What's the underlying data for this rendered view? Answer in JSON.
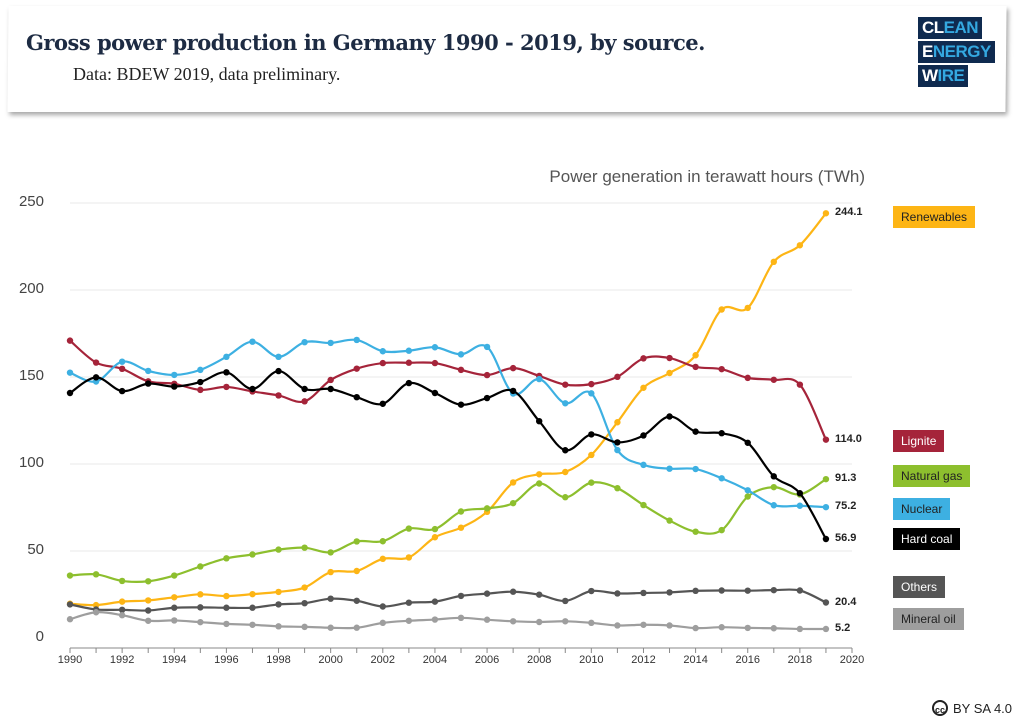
{
  "header": {
    "title": "Gross power production in Germany 1990 - 2019, by source.",
    "subtitle": "Data: BDEW 2019, data preliminary.",
    "logo": [
      "CLEAN",
      "ENERGY",
      "WIRE"
    ]
  },
  "license": "BY SA 4.0",
  "chart_data": {
    "type": "line",
    "title": "Gross power production in Germany 1990 - 2019, by source.",
    "ylabel": "Power generation in terawatt hours (TWh)",
    "xlim": [
      1990,
      2020
    ],
    "ylim": [
      0,
      250
    ],
    "yticks": [
      0,
      50,
      100,
      150,
      200,
      250
    ],
    "xticks": [
      1990,
      1992,
      1994,
      1996,
      1998,
      2000,
      2002,
      2004,
      2006,
      2008,
      2010,
      2012,
      2014,
      2016,
      2018,
      2020
    ],
    "grid": "horizontal",
    "legend": "right",
    "x": [
      1990,
      1991,
      1992,
      1993,
      1994,
      1995,
      1996,
      1997,
      1998,
      1999,
      2000,
      2001,
      2002,
      2003,
      2004,
      2005,
      2006,
      2007,
      2008,
      2009,
      2010,
      2011,
      2012,
      2013,
      2014,
      2015,
      2016,
      2017,
      2018,
      2019
    ],
    "series": [
      {
        "name": "Renewables",
        "color": "#FDB515",
        "text": "#222",
        "end_label": "244.1",
        "values": [
          19.7,
          18.9,
          20.9,
          21.6,
          23.4,
          25.1,
          24.1,
          25.2,
          26.5,
          29.0,
          37.9,
          38.5,
          45.5,
          46.3,
          57.9,
          63.4,
          72.5,
          89.4,
          94.1,
          95.4,
          105.2,
          124.0,
          143.8,
          152.3,
          162.5,
          188.8,
          189.7,
          216.2,
          225.7,
          244.1
        ]
      },
      {
        "name": "Lignite",
        "color": "#A5243A",
        "text": "#fff",
        "end_label": "114.0",
        "values": [
          170.9,
          158.3,
          154.7,
          147.5,
          146.1,
          142.6,
          144.3,
          141.7,
          139.4,
          136.0,
          148.3,
          154.8,
          158.0,
          158.2,
          158.0,
          154.1,
          151.1,
          155.1,
          150.6,
          145.6,
          145.9,
          150.1,
          160.7,
          160.9,
          155.8,
          154.5,
          149.5,
          148.4,
          145.6,
          114.0
        ]
      },
      {
        "name": "Natural gas",
        "color": "#8DBF2E",
        "text": "#222",
        "end_label": "91.3",
        "values": [
          35.9,
          36.6,
          32.8,
          32.6,
          35.9,
          41.1,
          45.8,
          48.0,
          50.8,
          51.9,
          49.2,
          55.5,
          55.6,
          62.9,
          62.6,
          72.7,
          74.5,
          77.5,
          88.8,
          80.9,
          89.3,
          86.1,
          76.4,
          67.5,
          61.1,
          62.0,
          81.3,
          86.7,
          82.5,
          91.3
        ]
      },
      {
        "name": "Nuclear",
        "color": "#3DB0E2",
        "text": "#222",
        "end_label": "75.2",
        "values": [
          152.5,
          147.4,
          158.8,
          153.5,
          151.2,
          154.1,
          161.6,
          170.3,
          161.6,
          170.0,
          169.6,
          171.3,
          164.8,
          165.1,
          167.1,
          163.0,
          167.3,
          140.5,
          148.8,
          134.9,
          140.6,
          108.0,
          99.5,
          97.3,
          97.1,
          91.8,
          84.9,
          76.3,
          76.0,
          75.2
        ]
      },
      {
        "name": "Hard coal",
        "color": "#000000",
        "text": "#fff",
        "end_label": "56.9",
        "values": [
          140.8,
          149.8,
          141.9,
          146.2,
          144.5,
          147.1,
          152.7,
          143.1,
          153.4,
          143.1,
          143.1,
          138.4,
          134.6,
          146.5,
          140.8,
          134.1,
          137.9,
          142.0,
          124.6,
          107.9,
          117.0,
          112.4,
          116.4,
          127.3,
          118.6,
          117.7,
          112.2,
          92.9,
          83.2,
          56.9
        ]
      },
      {
        "name": "Others",
        "color": "#555555",
        "text": "#fff",
        "end_label": "20.4",
        "values": [
          19.3,
          16.4,
          16.2,
          15.8,
          17.4,
          17.6,
          17.4,
          17.4,
          19.3,
          20.0,
          22.6,
          21.4,
          18.1,
          20.3,
          20.9,
          24.2,
          25.5,
          26.6,
          24.9,
          21.3,
          27.0,
          25.6,
          25.9,
          26.2,
          27.1,
          27.3,
          27.2,
          27.5,
          27.3,
          20.4
        ]
      },
      {
        "name": "Mineral oil",
        "color": "#9E9E9E",
        "text": "#222",
        "end_label": "5.2",
        "values": [
          10.8,
          14.8,
          13.1,
          9.9,
          10.1,
          9.1,
          8.1,
          7.6,
          6.7,
          6.4,
          5.9,
          5.9,
          8.7,
          9.9,
          10.6,
          11.6,
          10.5,
          9.6,
          9.2,
          9.6,
          8.7,
          7.2,
          7.6,
          7.2,
          5.7,
          6.2,
          5.8,
          5.6,
          5.2,
          5.2
        ]
      }
    ]
  }
}
